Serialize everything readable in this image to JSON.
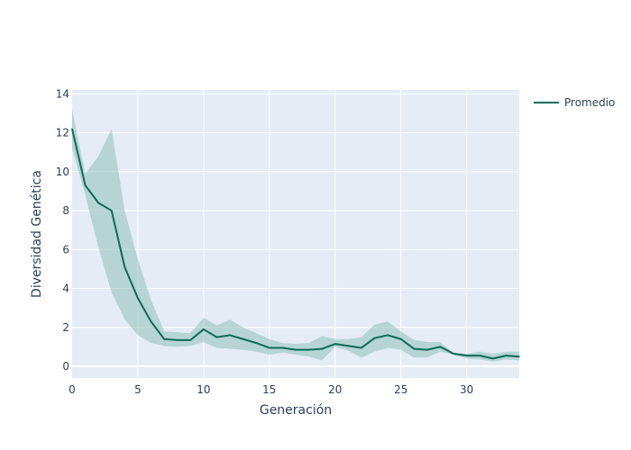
{
  "chart_data": {
    "type": "line",
    "title": "",
    "xlabel": "Generación",
    "ylabel": "Diversidad Genética",
    "xlim": [
      0,
      34
    ],
    "ylim": [
      -0.6,
      14.2
    ],
    "x_ticks": [
      0,
      5,
      10,
      15,
      20,
      25,
      30
    ],
    "y_ticks": [
      0,
      2,
      4,
      6,
      8,
      10,
      12,
      14
    ],
    "grid": true,
    "legend_position": "top-right",
    "colors": {
      "line": "#0b6b57",
      "band": "#8fc1b8",
      "plot_bg": "#e5ecf6",
      "grid": "#ffffff",
      "text": "#2a3f5f"
    },
    "series": [
      {
        "name": "Promedio",
        "x": [
          0,
          1,
          2,
          3,
          4,
          5,
          6,
          7,
          8,
          9,
          10,
          11,
          12,
          13,
          14,
          15,
          16,
          17,
          18,
          19,
          20,
          21,
          22,
          23,
          24,
          25,
          26,
          27,
          28,
          29,
          30,
          31,
          32,
          33,
          34
        ],
        "values": [
          12.2,
          9.3,
          8.4,
          8.0,
          5.1,
          3.5,
          2.3,
          1.4,
          1.35,
          1.35,
          1.9,
          1.5,
          1.6,
          1.4,
          1.2,
          0.95,
          0.95,
          0.85,
          0.85,
          0.9,
          1.15,
          1.05,
          0.95,
          1.45,
          1.6,
          1.4,
          0.9,
          0.85,
          1.0,
          0.65,
          0.55,
          0.55,
          0.4,
          0.55,
          0.5
        ],
        "upper": [
          13.2,
          9.9,
          10.8,
          12.2,
          8.0,
          5.5,
          3.4,
          1.8,
          1.75,
          1.7,
          2.5,
          2.1,
          2.4,
          2.0,
          1.7,
          1.4,
          1.2,
          1.15,
          1.2,
          1.55,
          1.4,
          1.4,
          1.5,
          2.15,
          2.3,
          1.8,
          1.35,
          1.25,
          1.25,
          0.7,
          0.65,
          0.75,
          0.65,
          0.75,
          0.75
        ],
        "lower": [
          11.2,
          8.8,
          6.1,
          3.8,
          2.4,
          1.6,
          1.2,
          1.05,
          1.0,
          1.05,
          1.25,
          0.95,
          0.9,
          0.85,
          0.75,
          0.6,
          0.7,
          0.6,
          0.5,
          0.3,
          1.0,
          0.8,
          0.45,
          0.75,
          0.95,
          0.85,
          0.45,
          0.45,
          0.75,
          0.6,
          0.4,
          0.35,
          0.25,
          0.35,
          0.3
        ]
      }
    ]
  }
}
